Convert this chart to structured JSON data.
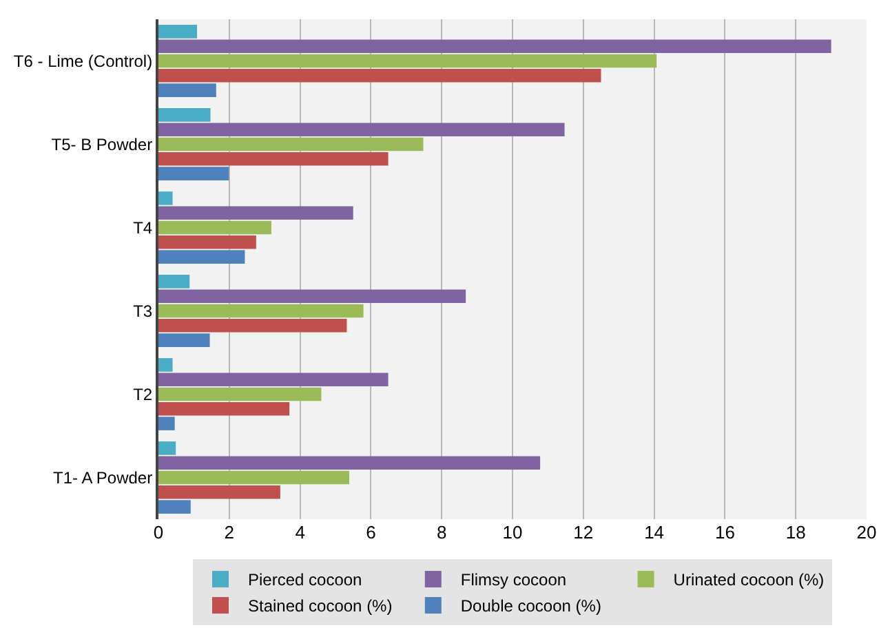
{
  "chart_data": {
    "type": "bar",
    "orientation": "horizontal",
    "categories": [
      "T6 - Lime (Control)",
      "T5- B Powder",
      "T4",
      "T3",
      "T2",
      "T1- A Powder"
    ],
    "series": [
      {
        "name": "Pierced cocoon",
        "color": "#4bacc6",
        "values": [
          1.09,
          1.47,
          0.4,
          0.88,
          0.4,
          0.49
        ]
      },
      {
        "name": "Flimsy cocoon",
        "color": "#8064a2",
        "values": [
          19.0,
          11.47,
          5.5,
          8.68,
          6.49,
          10.78
        ]
      },
      {
        "name": "Urinated cocoon (%)",
        "color": "#9bbb59",
        "values": [
          14.07,
          7.48,
          3.19,
          5.79,
          4.6,
          5.39
        ]
      },
      {
        "name": "Stained cocoon (%)",
        "color": "#c0504d",
        "values": [
          12.5,
          6.49,
          2.76,
          5.32,
          3.7,
          3.44
        ]
      },
      {
        "name": "Double cocoon (%)",
        "color": "#4f81bd",
        "values": [
          1.63,
          1.99,
          2.44,
          1.45,
          0.46,
          0.91
        ]
      }
    ],
    "xlim": [
      0,
      20
    ],
    "xticks": [
      0,
      2,
      4,
      6,
      8,
      10,
      12,
      14,
      16,
      18,
      20
    ],
    "grid": "x",
    "legend": "bottom"
  }
}
